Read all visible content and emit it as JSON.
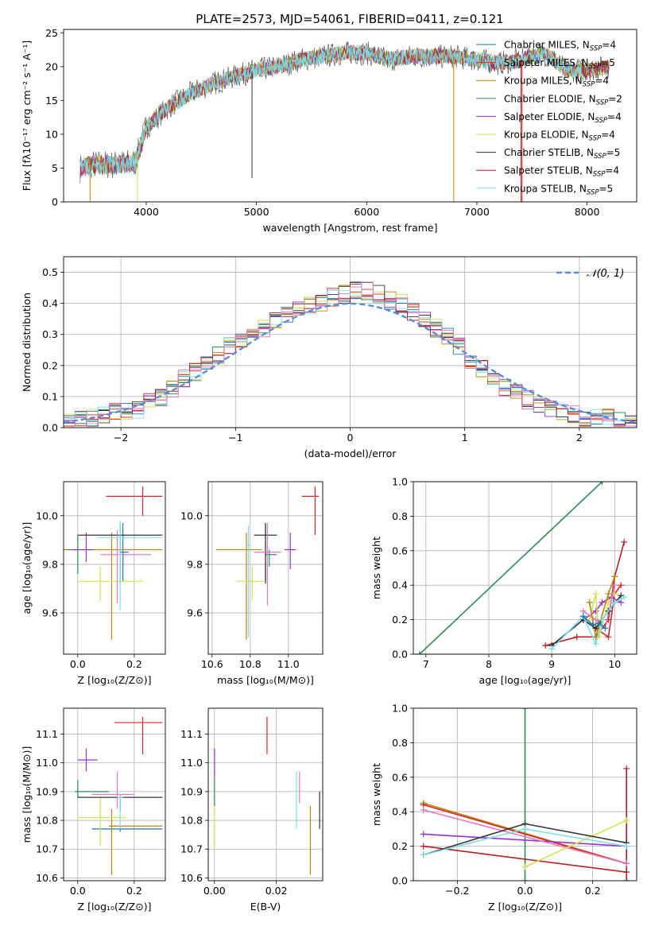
{
  "title": "PLATE=2573, MJD=54061, FIBERID=0411, z=0.121",
  "legend_models": [
    {
      "label": "Chabrier MILES, N",
      "sub": "SSP",
      "tail": "=4",
      "color": "#1f77b4"
    },
    {
      "label": "Salpeter MILES, N",
      "sub": "SSP",
      "tail": "=5",
      "color": "#d62728"
    },
    {
      "label": "Kroupa MILES, N",
      "sub": "SSP",
      "tail": "=4",
      "color": "#b8860b"
    },
    {
      "label": "Chabrier ELODIE, N",
      "sub": "SSP",
      "tail": "=2",
      "color": "#2e8b57"
    },
    {
      "label": "Salpeter ELODIE, N",
      "sub": "SSP",
      "tail": "=4",
      "color": "#9932cc"
    },
    {
      "label": "Kroupa ELODIE, N",
      "sub": "SSP",
      "tail": "=4",
      "color": "#d4e157"
    },
    {
      "label": "Chabrier STELIB, N",
      "sub": "SSP",
      "tail": "=5",
      "color": "#333333"
    },
    {
      "label": "Salpeter STELIB, N",
      "sub": "SSP",
      "tail": "=4",
      "color": "#b22222"
    },
    {
      "label": "Kroupa STELIB, N",
      "sub": "SSP",
      "tail": "=5",
      "color": "#80deea"
    }
  ],
  "chart_data": [
    {
      "type": "line",
      "id": "spectrum",
      "xlabel": "wavelength [Angstrom, rest frame]",
      "ylabel": "Flux [fλ10⁻¹⁷ erg cm⁻² s⁻¹ A⁻¹]",
      "xlim": [
        3250,
        8450
      ],
      "ylim": [
        0,
        25.5
      ],
      "xticks": [
        "4000",
        "5000",
        "6000",
        "7000",
        "8000"
      ],
      "yticks": [
        "0",
        "5",
        "10",
        "15",
        "20",
        "25"
      ],
      "continuum": [
        [
          3400,
          5
        ],
        [
          3500,
          5.5
        ],
        [
          3700,
          5.5
        ],
        [
          3900,
          5.8
        ],
        [
          4000,
          11
        ],
        [
          4200,
          14
        ],
        [
          4400,
          16
        ],
        [
          4600,
          17.5
        ],
        [
          4800,
          18.5
        ],
        [
          5000,
          19.5
        ],
        [
          5200,
          20
        ],
        [
          5400,
          21
        ],
        [
          5600,
          21.5
        ],
        [
          5800,
          22
        ],
        [
          6000,
          22
        ],
        [
          6200,
          21
        ],
        [
          6400,
          21.5
        ],
        [
          6600,
          21.5
        ],
        [
          6800,
          21.5
        ],
        [
          7000,
          21
        ],
        [
          7200,
          20.5
        ],
        [
          7400,
          21
        ],
        [
          7600,
          22
        ],
        [
          7700,
          21
        ],
        [
          7800,
          19.5
        ],
        [
          8000,
          19.5
        ],
        [
          8200,
          20
        ]
      ]
    },
    {
      "type": "bar",
      "id": "residual_histogram",
      "xlabel": "(data-model)/error",
      "ylabel": "Normed distribution",
      "xlim": [
        -2.5,
        2.5
      ],
      "ylim": [
        0,
        0.55
      ],
      "xticks": [
        "−2",
        "−1",
        "0",
        "1",
        "2"
      ],
      "yticks": [
        "0.0",
        "0.1",
        "0.2",
        "0.3",
        "0.4",
        "0.5"
      ],
      "bin_width": 0.1,
      "legend": "𝒩(0, 1)",
      "hist_center": [
        0.02,
        0.03,
        0.03,
        0.04,
        0.05,
        0.05,
        0.06,
        0.08,
        0.1,
        0.12,
        0.16,
        0.18,
        0.2,
        0.23,
        0.26,
        0.28,
        0.3,
        0.32,
        0.34,
        0.36,
        0.38,
        0.39,
        0.4,
        0.42,
        0.43,
        0.44,
        0.44,
        0.43,
        0.41,
        0.4,
        0.37,
        0.35,
        0.32,
        0.29,
        0.26,
        0.22,
        0.19,
        0.16,
        0.13,
        0.11,
        0.09,
        0.07,
        0.06,
        0.05,
        0.04,
        0.03,
        0.03,
        0.03,
        0.02,
        0.02
      ]
    },
    {
      "type": "scatter",
      "id": "age_vs_Z",
      "xlabel": "Z [log₁₀(Z/Z⊙)]",
      "ylabel": "age  [log₁₀(age/yr)]",
      "xlim": [
        -0.05,
        0.31
      ],
      "ylim": [
        9.43,
        10.14
      ],
      "xticks": [
        "0.0",
        "0.2"
      ],
      "yticks": [
        "9.6",
        "9.8",
        "10.0"
      ],
      "points": [
        {
          "x": 0.16,
          "y": 9.85,
          "ex": [
            0.01,
            0.02
          ],
          "ey": [
            0.12,
            0.12
          ],
          "c": "#1f77b4"
        },
        {
          "x": 0.23,
          "y": 10.08,
          "ex": [
            0.13,
            0.07
          ],
          "ey": [
            0.08,
            0.04
          ],
          "c": "#d62728"
        },
        {
          "x": 0.12,
          "y": 9.86,
          "ex": [
            0.18,
            0.18
          ],
          "ey": [
            0.37,
            0.07
          ],
          "c": "#b8860b"
        },
        {
          "x": 0.0,
          "y": 9.86,
          "ex": [
            0.04,
            0.06
          ],
          "ey": [
            0.1,
            0.06
          ],
          "c": "#2e8b57"
        },
        {
          "x": 0.03,
          "y": 9.86,
          "ex": [
            0.05,
            0.02
          ],
          "ey": [
            0.05,
            0.07
          ],
          "c": "#9932cc"
        },
        {
          "x": 0.08,
          "y": 9.73,
          "ex": [
            0.08,
            0.15
          ],
          "ey": [
            0.08,
            0.06
          ],
          "c": "#d4e157"
        },
        {
          "x": 0.15,
          "y": 9.92,
          "ex": [
            0.15,
            0.15
          ],
          "ey": [
            0.2,
            0.05
          ],
          "c": "#333333"
        },
        {
          "x": 0.14,
          "y": 9.84,
          "ex": [
            0.06,
            0.12
          ],
          "ey": [
            0.2,
            0.1
          ],
          "c": "#e377c2"
        },
        {
          "x": 0.15,
          "y": 9.91,
          "ex": [
            0.08,
            0.15
          ],
          "ey": [
            0.3,
            0.07
          ],
          "c": "#80deea"
        }
      ]
    },
    {
      "type": "scatter",
      "id": "age_vs_mass",
      "xlabel": "mass [log₁₀(M/M⊙)]",
      "ylabel": "",
      "xlim": [
        10.58,
        11.18
      ],
      "ylim": [
        9.43,
        10.14
      ],
      "xticks": [
        "10.6",
        "10.8",
        "11.0"
      ],
      "yticks": [
        "9.6",
        "9.8",
        "10.0"
      ],
      "points": [
        {
          "x": 10.88,
          "y": 9.85,
          "ex": [
            0.01,
            0.01
          ],
          "ey": [
            0.12,
            0.12
          ],
          "c": "#1f77b4"
        },
        {
          "x": 11.14,
          "y": 10.08,
          "ex": [
            0.07,
            0.02
          ],
          "ey": [
            0.16,
            0.04
          ],
          "c": "#d62728"
        },
        {
          "x": 10.78,
          "y": 9.86,
          "ex": [
            0.16,
            0.08
          ],
          "ey": [
            0.37,
            0.07
          ],
          "c": "#b8860b"
        },
        {
          "x": 10.9,
          "y": 9.84,
          "ex": [
            0.02,
            0.04
          ],
          "ey": [
            0.05,
            0.02
          ],
          "c": "#2e8b57"
        },
        {
          "x": 11.01,
          "y": 9.86,
          "ex": [
            0.03,
            0.03
          ],
          "ey": [
            0.08,
            0.07
          ],
          "c": "#9932cc"
        },
        {
          "x": 10.81,
          "y": 9.73,
          "ex": [
            0.08,
            0.06
          ],
          "ey": [
            0.08,
            0.06
          ],
          "c": "#d4e157"
        },
        {
          "x": 10.88,
          "y": 9.92,
          "ex": [
            0.06,
            0.06
          ],
          "ey": [
            0.2,
            0.05
          ],
          "c": "#333333"
        },
        {
          "x": 10.89,
          "y": 9.85,
          "ex": [
            0.07,
            0.07
          ],
          "ey": [
            0.22,
            0.12
          ],
          "c": "#e377c2"
        },
        {
          "x": 10.79,
          "y": 9.88,
          "ex": [
            0.01,
            0.01
          ],
          "ey": [
            0.38,
            0.08
          ],
          "c": "#80deea"
        }
      ]
    },
    {
      "type": "line",
      "id": "weight_vs_age",
      "xlabel": "age  [log₁₀(age/yr)]",
      "ylabel": "mass weight",
      "xlim": [
        6.8,
        10.35
      ],
      "ylim": [
        0,
        1
      ],
      "xticks": [
        "7",
        "8",
        "9",
        "10"
      ],
      "yticks": [
        "0.0",
        "0.2",
        "0.4",
        "0.6",
        "0.8",
        "1.0"
      ],
      "series": [
        {
          "c": "#2e8b57",
          "pts": [
            [
              6.9,
              0.0
            ],
            [
              9.8,
              1.0
            ]
          ]
        },
        {
          "c": "#b22222",
          "pts": [
            [
              8.9,
              0.05
            ],
            [
              9.4,
              0.1
            ],
            [
              9.7,
              0.1
            ],
            [
              9.9,
              0.2
            ],
            [
              10.0,
              0.45
            ],
            [
              10.15,
              0.65
            ]
          ]
        },
        {
          "c": "#d62728",
          "pts": [
            [
              9.5,
              0.2
            ],
            [
              9.7,
              0.15
            ],
            [
              9.9,
              0.1
            ],
            [
              10.0,
              0.35
            ],
            [
              10.1,
              0.4
            ]
          ]
        },
        {
          "c": "#9932cc",
          "pts": [
            [
              9.5,
              0.2
            ],
            [
              9.7,
              0.25
            ],
            [
              9.8,
              0.3
            ],
            [
              9.95,
              0.33
            ],
            [
              10.1,
              0.3
            ]
          ]
        },
        {
          "c": "#d4e157",
          "pts": [
            [
              9.6,
              0.2
            ],
            [
              9.7,
              0.35
            ],
            [
              9.75,
              0.1
            ],
            [
              9.9,
              0.3
            ],
            [
              10.0,
              0.35
            ]
          ]
        },
        {
          "c": "#e377c2",
          "pts": [
            [
              9.5,
              0.25
            ],
            [
              9.7,
              0.2
            ],
            [
              9.85,
              0.15
            ],
            [
              10.0,
              0.4
            ]
          ]
        },
        {
          "c": "#b8860b",
          "pts": [
            [
              9.6,
              0.3
            ],
            [
              9.7,
              0.1
            ],
            [
              9.9,
              0.35
            ],
            [
              10.0,
              0.45
            ]
          ]
        },
        {
          "c": "#333333",
          "pts": [
            [
              9.0,
              0.05
            ],
            [
              9.5,
              0.2
            ],
            [
              9.7,
              0.15
            ],
            [
              9.9,
              0.25
            ],
            [
              10.1,
              0.34
            ]
          ]
        },
        {
          "c": "#80deea",
          "pts": [
            [
              9.0,
              0.03
            ],
            [
              9.5,
              0.22
            ],
            [
              9.7,
              0.06
            ],
            [
              9.8,
              0.2
            ],
            [
              10.0,
              0.3
            ],
            [
              10.15,
              0.33
            ]
          ]
        },
        {
          "c": "#1f77b4",
          "pts": [
            [
              9.5,
              0.22
            ],
            [
              9.65,
              0.17
            ],
            [
              9.75,
              0.18
            ],
            [
              9.85,
              0.15
            ]
          ]
        }
      ]
    },
    {
      "type": "scatter",
      "id": "mass_vs_Z",
      "xlabel": "Z [log₁₀(Z/Z⊙)]",
      "ylabel": "mass [log₁₀(M/M⊙)]",
      "xlim": [
        -0.05,
        0.31
      ],
      "ylim": [
        10.59,
        11.19
      ],
      "xticks": [
        "0.0",
        "0.2"
      ],
      "yticks": [
        "10.6",
        "10.7",
        "10.8",
        "10.9",
        "11.0",
        "11.1"
      ],
      "points": [
        {
          "x": 0.15,
          "y": 10.77,
          "ex": [
            0.1,
            0.15
          ],
          "ey": [
            0.01,
            0.01
          ],
          "c": "#1f77b4"
        },
        {
          "x": 0.23,
          "y": 11.14,
          "ex": [
            0.1,
            0.07
          ],
          "ey": [
            0.11,
            0.02
          ],
          "c": "#d62728"
        },
        {
          "x": 0.12,
          "y": 10.78,
          "ex": [
            0.01,
            0.18
          ],
          "ey": [
            0.17,
            0.06
          ],
          "c": "#b8860b"
        },
        {
          "x": 0.0,
          "y": 10.9,
          "ex": [
            0.01,
            0.11
          ],
          "ey": [
            0.02,
            0.04
          ],
          "c": "#2e8b57"
        },
        {
          "x": 0.03,
          "y": 11.01,
          "ex": [
            0.03,
            0.04
          ],
          "ey": [
            0.04,
            0.04
          ],
          "c": "#9932cc"
        },
        {
          "x": 0.08,
          "y": 10.81,
          "ex": [
            0.08,
            0.09
          ],
          "ey": [
            0.1,
            0.07
          ],
          "c": "#d4e157"
        },
        {
          "x": 0.15,
          "y": 10.88,
          "ex": [
            0.15,
            0.15
          ],
          "ey": [
            0.05,
            0.01
          ],
          "c": "#333333"
        },
        {
          "x": 0.14,
          "y": 10.89,
          "ex": [
            0.09,
            0.06
          ],
          "ey": [
            0.05,
            0.08
          ],
          "c": "#e377c2"
        },
        {
          "x": 0.15,
          "y": 10.88,
          "ex": [
            0.01,
            0.01
          ],
          "ey": [
            0.11,
            0.01
          ],
          "c": "#80deea"
        }
      ]
    },
    {
      "type": "scatter",
      "id": "mass_vs_ebv",
      "xlabel": "E(B-V)",
      "ylabel": "",
      "xlim": [
        -0.002,
        0.035
      ],
      "ylim": [
        10.59,
        11.19
      ],
      "xticks": [
        "0.00",
        "0.02"
      ],
      "yticks": [
        "10.6",
        "10.7",
        "10.8",
        "10.9",
        "11.0",
        "11.1"
      ],
      "vlines": [
        {
          "x": 0.0,
          "y0": 10.95,
          "y1": 11.05,
          "c": "#9932cc"
        },
        {
          "x": 0.0,
          "y0": 10.85,
          "y1": 10.95,
          "c": "#2e8b57"
        },
        {
          "x": 0.0,
          "y0": 10.7,
          "y1": 10.85,
          "c": "#d4e157"
        },
        {
          "x": 0.017,
          "y0": 11.03,
          "y1": 11.16,
          "c": "#d62728"
        },
        {
          "x": 0.0265,
          "y0": 10.77,
          "y1": 10.97,
          "c": "#80deea"
        },
        {
          "x": 0.0275,
          "y0": 10.86,
          "y1": 10.97,
          "c": "#e377c2"
        },
        {
          "x": 0.031,
          "y0": 10.61,
          "y1": 10.85,
          "c": "#b8860b"
        },
        {
          "x": 0.034,
          "y0": 10.77,
          "y1": 10.9,
          "c": "#333333"
        }
      ]
    },
    {
      "type": "line",
      "id": "weight_vs_Z",
      "xlabel": "Z [log₁₀(Z/Z⊙)]",
      "ylabel": "mass weight",
      "xlim": [
        -0.33,
        0.33
      ],
      "ylim": [
        0,
        1
      ],
      "xticks": [
        "−0.2",
        "0.0",
        "0.2"
      ],
      "yticks": [
        "0.0",
        "0.2",
        "0.4",
        "0.6",
        "0.8",
        "1.0"
      ],
      "series": [
        {
          "c": "#2e8b57",
          "pts": [
            [
              0.0,
              1.0
            ],
            [
              0.0,
              0.0
            ]
          ]
        },
        {
          "c": "#b22222",
          "pts": [
            [
              -0.3,
              0.2
            ],
            [
              0.3,
              0.05
            ]
          ]
        },
        {
          "c": "#b22222",
          "pts": [
            [
              0.3,
              0.0
            ],
            [
              0.3,
              0.65
            ]
          ]
        },
        {
          "c": "#b8860b",
          "pts": [
            [
              -0.3,
              0.45
            ],
            [
              0.3,
              0.1
            ]
          ]
        },
        {
          "c": "#d62728",
          "pts": [
            [
              -0.3,
              0.44
            ],
            [
              0.3,
              0.1
            ]
          ]
        },
        {
          "c": "#9932cc",
          "pts": [
            [
              -0.3,
              0.27
            ],
            [
              0.3,
              0.2
            ]
          ]
        },
        {
          "c": "#e377c2",
          "pts": [
            [
              -0.3,
              0.41
            ],
            [
              0.3,
              0.1
            ]
          ]
        },
        {
          "c": "#d4e157",
          "pts": [
            [
              0.0,
              0.08
            ],
            [
              0.3,
              0.35
            ]
          ]
        },
        {
          "c": "#333333",
          "pts": [
            [
              -0.3,
              0.15
            ],
            [
              0.0,
              0.33
            ],
            [
              0.3,
              0.22
            ]
          ]
        },
        {
          "c": "#80deea",
          "pts": [
            [
              -0.3,
              0.15
            ],
            [
              0.0,
              0.3
            ],
            [
              0.3,
              0.2
            ]
          ]
        }
      ]
    }
  ]
}
